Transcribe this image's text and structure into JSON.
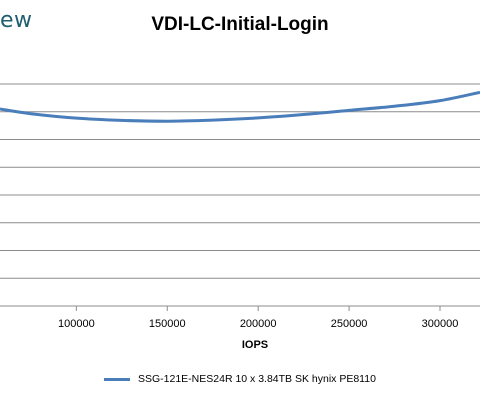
{
  "header": {
    "logo_fragment": "ew"
  },
  "chart_data": {
    "type": "line",
    "title": "VDI-LC-Initial-Login",
    "xlabel": "IOPS",
    "ylabel": "",
    "xlim": [
      58000,
      322000
    ],
    "ylim": [
      0,
      8
    ],
    "x_ticks": [
      100000,
      150000,
      200000,
      250000,
      300000
    ],
    "y_gridlines": [
      0,
      1,
      2,
      3,
      4,
      5,
      6,
      7,
      8
    ],
    "grid": true,
    "legend": "bottom",
    "series": [
      {
        "name": "SSG-121E-NES24R  10 x 3.84TB SK hynix PE8110",
        "color": "#4a7ebb",
        "points": [
          [
            58000,
            7.1
          ],
          [
            75000,
            6.93
          ],
          [
            100000,
            6.77
          ],
          [
            125000,
            6.69
          ],
          [
            150000,
            6.66
          ],
          [
            175000,
            6.7
          ],
          [
            200000,
            6.78
          ],
          [
            225000,
            6.9
          ],
          [
            250000,
            7.05
          ],
          [
            275000,
            7.2
          ],
          [
            300000,
            7.4
          ],
          [
            322000,
            7.7
          ]
        ]
      }
    ]
  }
}
